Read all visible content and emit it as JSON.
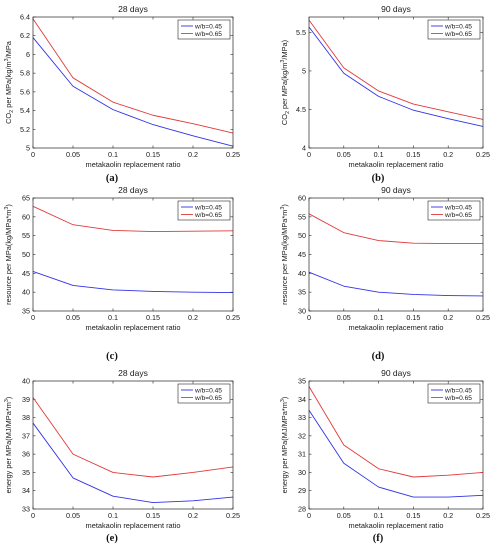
{
  "chart_data": [
    {
      "type": "line",
      "panel": "(a)",
      "title": "28 days",
      "xlabel": "metakaolin replacement ratio",
      "ylabel": {
        "main": "CO",
        "sub": "2",
        "rest": " per MPa(kg/m",
        "sup": "3",
        "tail": "/MPa"
      },
      "x": [
        0,
        0.05,
        0.1,
        0.15,
        0.2,
        0.25
      ],
      "xticks": [
        "0",
        "0.05",
        "0.1",
        "0.15",
        "0.2",
        "0.25"
      ],
      "xlim": [
        0,
        0.25
      ],
      "ylim": [
        5,
        6.4
      ],
      "yticks": [
        "5",
        "5.2",
        "5.4",
        "5.6",
        "5.8",
        "6",
        "6.2",
        "6.4"
      ],
      "legend_position": "top-right",
      "series": [
        {
          "name": "w/b=0.45",
          "color": "#3232e6",
          "values": [
            6.18,
            5.66,
            5.41,
            5.25,
            5.13,
            5.02
          ]
        },
        {
          "name": "w/b=0.65",
          "color": "#e03a3a",
          "values": [
            6.38,
            5.75,
            5.49,
            5.35,
            5.26,
            5.16
          ]
        }
      ]
    },
    {
      "type": "line",
      "panel": "(b)",
      "title": "90 days",
      "xlabel": "metakaolin replacement ratio",
      "ylabel": {
        "main": "CO",
        "sub": "2",
        "rest": " per MPa(kg/m",
        "sup": "3",
        "tail": "/MPa)"
      },
      "x": [
        0,
        0.05,
        0.1,
        0.15,
        0.2,
        0.25
      ],
      "xticks": [
        "0",
        "0.05",
        "0.1",
        "0.15",
        "0.2",
        "0.25"
      ],
      "xlim": [
        0,
        0.25
      ],
      "ylim": [
        4,
        5.7
      ],
      "yticks": [
        "4",
        "4.5",
        "5",
        "5.5"
      ],
      "legend_position": "top-right",
      "series": [
        {
          "name": "w/b=0.45",
          "color": "#3232e6",
          "values": [
            5.57,
            4.97,
            4.67,
            4.49,
            4.38,
            4.28
          ]
        },
        {
          "name": "w/b=0.65",
          "color": "#e03a3a",
          "values": [
            5.66,
            5.04,
            4.74,
            4.57,
            4.47,
            4.37
          ]
        }
      ]
    },
    {
      "type": "line",
      "panel": "(c)",
      "title": "28 days",
      "xlabel": "metakaolin replacement ratio",
      "ylabel": {
        "main": "resource per MPa(kg/MPa*m",
        "sup": "3",
        "tail": ")"
      },
      "x": [
        0,
        0.05,
        0.1,
        0.15,
        0.2,
        0.25
      ],
      "xticks": [
        "0",
        "0.05",
        "0.1",
        "0.15",
        "0.2",
        "0.25"
      ],
      "xlim": [
        0,
        0.25
      ],
      "ylim": [
        35,
        65
      ],
      "yticks": [
        "35",
        "40",
        "45",
        "50",
        "55",
        "60",
        "65"
      ],
      "legend_position": "top-right",
      "series": [
        {
          "name": "w/b=0.45",
          "color": "#3232e6",
          "values": [
            45.5,
            41.8,
            40.6,
            40.2,
            40.0,
            39.9
          ]
        },
        {
          "name": "w/b=0.65",
          "color": "#e03a3a",
          "values": [
            62.8,
            57.9,
            56.4,
            56.1,
            56.2,
            56.3
          ]
        }
      ]
    },
    {
      "type": "line",
      "panel": "(d)",
      "title": "90 days",
      "xlabel": "metakaolin replacement ratio",
      "ylabel": {
        "main": "resource per MPa(kg/MPa*m",
        "sup": "3",
        "tail": ")"
      },
      "x": [
        0,
        0.05,
        0.1,
        0.15,
        0.2,
        0.25
      ],
      "xticks": [
        "0",
        "0.05",
        "0.1",
        "0.15",
        "0.2",
        "0.25"
      ],
      "xlim": [
        0,
        0.25
      ],
      "ylim": [
        30,
        60
      ],
      "yticks": [
        "30",
        "35",
        "40",
        "45",
        "50",
        "55",
        "60"
      ],
      "legend_position": "top-right",
      "series": [
        {
          "name": "w/b=0.45",
          "color": "#3232e6",
          "values": [
            40.3,
            36.6,
            35.0,
            34.4,
            34.1,
            34.0
          ]
        },
        {
          "name": "w/b=0.65",
          "color": "#e03a3a",
          "values": [
            55.8,
            50.8,
            48.7,
            48.0,
            47.9,
            47.9
          ]
        }
      ]
    },
    {
      "type": "line",
      "panel": "(e)",
      "title": "28 days",
      "xlabel": "metakaolin replacement ratio",
      "ylabel": {
        "main": "energy per MPa(MJ/MPa*m",
        "sup": "3",
        "tail": ")"
      },
      "x": [
        0,
        0.05,
        0.1,
        0.15,
        0.2,
        0.25
      ],
      "xticks": [
        "0",
        "0.05",
        "0.1",
        "0.15",
        "0.2",
        "0.25"
      ],
      "xlim": [
        0,
        0.25
      ],
      "ylim": [
        33,
        40
      ],
      "yticks": [
        "33",
        "34",
        "35",
        "36",
        "37",
        "38",
        "39",
        "40"
      ],
      "legend_position": "top-right",
      "series": [
        {
          "name": "w/b=0.45",
          "color": "#3232e6",
          "values": [
            37.7,
            34.7,
            33.7,
            33.35,
            33.45,
            33.65
          ]
        },
        {
          "name": "w/b=0.65",
          "color": "#e03a3a",
          "values": [
            39.1,
            36.0,
            35.0,
            34.75,
            35.0,
            35.3
          ]
        }
      ]
    },
    {
      "type": "line",
      "panel": "(f)",
      "title": "90 days",
      "xlabel": "metakaolin replacement ratio",
      "ylabel": {
        "main": "energy per MPa(MJ/MPa*m",
        "sup": "3",
        "tail": ")"
      },
      "x": [
        0,
        0.05,
        0.1,
        0.15,
        0.2,
        0.25
      ],
      "xticks": [
        "0",
        "0.05",
        "0.1",
        "0.15",
        "0.2",
        "0.25"
      ],
      "xlim": [
        0,
        0.25
      ],
      "ylim": [
        28,
        35
      ],
      "yticks": [
        "28",
        "29",
        "30",
        "31",
        "32",
        "33",
        "34",
        "35"
      ],
      "legend_position": "top-right",
      "series": [
        {
          "name": "w/b=0.45",
          "color": "#3232e6",
          "values": [
            33.4,
            30.5,
            29.2,
            28.65,
            28.65,
            28.75
          ]
        },
        {
          "name": "w/b=0.65",
          "color": "#e03a3a",
          "values": [
            34.7,
            31.5,
            30.2,
            29.75,
            29.85,
            30.0
          ]
        }
      ]
    }
  ]
}
